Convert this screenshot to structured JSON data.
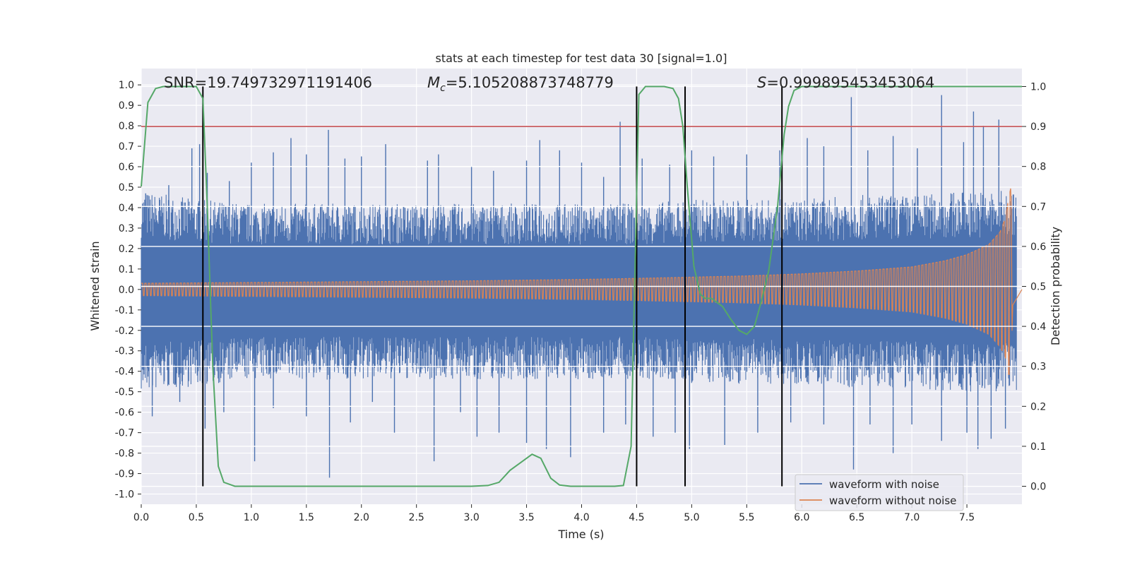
{
  "chart_data": {
    "type": "line",
    "title": "stats at each timestep for test data 30 [signal=1.0]",
    "xlabel": "Time (s)",
    "ylabel_left": "Whitened strain",
    "ylabel_right": "Detection probability",
    "xlim": [
      0.0,
      8.0
    ],
    "ylim_left": [
      -1.05,
      1.08
    ],
    "ylim_right": [
      -0.045,
      1.045
    ],
    "x_ticks": [
      "0.0",
      "0.5",
      "1.0",
      "1.5",
      "2.0",
      "2.5",
      "3.0",
      "3.5",
      "4.0",
      "4.5",
      "5.0",
      "5.5",
      "6.0",
      "6.5",
      "7.0",
      "7.5"
    ],
    "y_ticks_left": [
      "-1.0",
      "-0.9",
      "-0.8",
      "-0.7",
      "-0.6",
      "-0.5",
      "-0.4",
      "-0.3",
      "-0.2",
      "-0.1",
      "0.0",
      "0.1",
      "0.2",
      "0.3",
      "0.4",
      "0.5",
      "0.6",
      "0.7",
      "0.8",
      "0.9",
      "1.0"
    ],
    "y_ticks_right": [
      "0.0",
      "0.1",
      "0.2",
      "0.3",
      "0.4",
      "0.5",
      "0.6",
      "0.7",
      "0.8",
      "0.9",
      "1.0"
    ],
    "grid": true,
    "legend_position": "bottom-right",
    "annotations": {
      "snr": "SNR=19.749732971191406",
      "mc_symbol": "M",
      "mc_subscript": "c",
      "mc_value": "=5.105208873748779",
      "s_symbol": "S",
      "s_value": "=0.999895453453064"
    },
    "series": [
      {
        "name": "waveform with noise",
        "color": "#4c72b0",
        "envelope": [
          [
            0.0,
            0.46,
            -0.48
          ],
          [
            0.5,
            0.42,
            -0.45
          ],
          [
            1.0,
            0.4,
            -0.42
          ],
          [
            1.5,
            0.4,
            -0.42
          ],
          [
            2.0,
            0.4,
            -0.42
          ],
          [
            2.5,
            0.4,
            -0.42
          ],
          [
            3.0,
            0.4,
            -0.42
          ],
          [
            3.5,
            0.4,
            -0.42
          ],
          [
            4.0,
            0.4,
            -0.42
          ],
          [
            4.5,
            0.4,
            -0.42
          ],
          [
            5.0,
            0.42,
            -0.44
          ],
          [
            5.5,
            0.42,
            -0.44
          ],
          [
            6.0,
            0.42,
            -0.44
          ],
          [
            6.5,
            0.44,
            -0.46
          ],
          [
            7.0,
            0.44,
            -0.46
          ],
          [
            7.5,
            0.46,
            -0.48
          ],
          [
            7.95,
            0.46,
            -0.48
          ]
        ],
        "spikes": [
          [
            0.04,
            0.47
          ],
          [
            0.25,
            0.51
          ],
          [
            0.46,
            0.69
          ],
          [
            0.53,
            0.71
          ],
          [
            0.6,
            0.57
          ],
          [
            0.8,
            0.53
          ],
          [
            1.0,
            0.62
          ],
          [
            1.2,
            0.67
          ],
          [
            1.36,
            0.74
          ],
          [
            1.5,
            0.66
          ],
          [
            1.7,
            0.78
          ],
          [
            1.85,
            0.64
          ],
          [
            2.0,
            0.65
          ],
          [
            2.22,
            0.71
          ],
          [
            2.6,
            0.63
          ],
          [
            2.7,
            0.66
          ],
          [
            3.0,
            0.6
          ],
          [
            3.2,
            0.58
          ],
          [
            3.5,
            0.63
          ],
          [
            3.62,
            0.73
          ],
          [
            3.8,
            0.68
          ],
          [
            4.0,
            0.62
          ],
          [
            4.2,
            0.55
          ],
          [
            4.35,
            0.82
          ],
          [
            4.55,
            0.64
          ],
          [
            4.8,
            0.61
          ],
          [
            5.0,
            0.68
          ],
          [
            5.2,
            0.65
          ],
          [
            5.5,
            0.66
          ],
          [
            5.8,
            0.68
          ],
          [
            6.05,
            0.74
          ],
          [
            6.2,
            0.7
          ],
          [
            6.45,
            0.94
          ],
          [
            6.6,
            0.68
          ],
          [
            6.83,
            0.75
          ],
          [
            7.05,
            0.69
          ],
          [
            7.27,
            0.95
          ],
          [
            7.47,
            0.72
          ],
          [
            7.56,
            0.87
          ],
          [
            7.65,
            0.8
          ],
          [
            7.79,
            0.83
          ],
          [
            0.1,
            -0.62
          ],
          [
            0.35,
            -0.55
          ],
          [
            0.58,
            -0.68
          ],
          [
            0.75,
            -0.6
          ],
          [
            1.03,
            -0.84
          ],
          [
            1.2,
            -0.58
          ],
          [
            1.5,
            -0.62
          ],
          [
            1.71,
            -0.92
          ],
          [
            1.9,
            -0.65
          ],
          [
            2.1,
            -0.55
          ],
          [
            2.3,
            -0.7
          ],
          [
            2.66,
            -0.84
          ],
          [
            2.9,
            -0.6
          ],
          [
            3.05,
            -0.72
          ],
          [
            3.25,
            -0.7
          ],
          [
            3.5,
            -0.75
          ],
          [
            3.68,
            -0.78
          ],
          [
            3.9,
            -0.82
          ],
          [
            4.2,
            -0.7
          ],
          [
            4.4,
            -0.66
          ],
          [
            4.65,
            -0.72
          ],
          [
            4.85,
            -0.7
          ],
          [
            4.98,
            -0.78
          ],
          [
            5.3,
            -0.76
          ],
          [
            5.6,
            -0.7
          ],
          [
            5.9,
            -0.65
          ],
          [
            6.2,
            -0.66
          ],
          [
            6.47,
            -0.88
          ],
          [
            6.62,
            -0.66
          ],
          [
            6.83,
            -0.8
          ],
          [
            7.0,
            -0.66
          ],
          [
            7.27,
            -0.74
          ],
          [
            7.5,
            -0.7
          ],
          [
            7.6,
            -0.78
          ],
          [
            7.72,
            -0.73
          ],
          [
            7.85,
            -0.68
          ]
        ]
      },
      {
        "name": "waveform without noise",
        "color": "#dd8452",
        "envelope": [
          [
            0.0,
            0.03,
            -0.03
          ],
          [
            1.0,
            0.034,
            -0.034
          ],
          [
            2.0,
            0.038,
            -0.038
          ],
          [
            3.0,
            0.042,
            -0.042
          ],
          [
            4.0,
            0.049,
            -0.049
          ],
          [
            4.5,
            0.054,
            -0.054
          ],
          [
            5.0,
            0.06,
            -0.06
          ],
          [
            5.5,
            0.066,
            -0.066
          ],
          [
            6.0,
            0.076,
            -0.076
          ],
          [
            6.5,
            0.09,
            -0.09
          ],
          [
            7.0,
            0.11,
            -0.11
          ],
          [
            7.3,
            0.14,
            -0.14
          ],
          [
            7.5,
            0.17,
            -0.17
          ],
          [
            7.7,
            0.22,
            -0.22
          ],
          [
            7.8,
            0.28,
            -0.28
          ],
          [
            7.85,
            0.35,
            -0.33
          ],
          [
            7.88,
            0.45,
            -0.42
          ],
          [
            7.9,
            0.5,
            -0.4
          ],
          [
            7.92,
            0.01,
            -0.01
          ],
          [
            8.0,
            0.0,
            0.0
          ]
        ]
      },
      {
        "name": "",
        "color": "#55a868",
        "x": [
          0.0,
          0.06,
          0.13,
          0.2,
          0.3,
          0.4,
          0.5,
          0.56,
          0.6,
          0.65,
          0.7,
          0.75,
          0.85,
          1.0,
          1.5,
          2.0,
          2.5,
          3.0,
          3.15,
          3.25,
          3.35,
          3.45,
          3.55,
          3.63,
          3.72,
          3.8,
          3.9,
          4.1,
          4.3,
          4.38,
          4.45,
          4.52,
          4.58,
          4.65,
          4.75,
          4.83,
          4.88,
          4.92,
          4.96,
          5.02,
          5.08,
          5.12,
          5.18,
          5.28,
          5.35,
          5.43,
          5.5,
          5.57,
          5.63,
          5.7,
          5.78,
          5.84,
          5.88,
          5.93,
          6.0,
          6.5,
          7.0,
          7.5,
          8.0
        ],
        "y": [
          0.75,
          0.96,
          0.995,
          1.0,
          1.0,
          1.0,
          1.0,
          0.97,
          0.7,
          0.3,
          0.05,
          0.01,
          0.0,
          0.0,
          0.0,
          0.0,
          0.0,
          0.0,
          0.002,
          0.01,
          0.04,
          0.06,
          0.08,
          0.07,
          0.02,
          0.003,
          0.0,
          0.0,
          0.0,
          0.002,
          0.1,
          0.98,
          1.0,
          1.0,
          1.0,
          0.995,
          0.97,
          0.9,
          0.75,
          0.55,
          0.48,
          0.47,
          0.47,
          0.45,
          0.42,
          0.39,
          0.38,
          0.4,
          0.46,
          0.54,
          0.7,
          0.88,
          0.95,
          0.99,
          1.0,
          1.0,
          1.0,
          1.0,
          1.0
        ]
      }
    ],
    "threshold": {
      "y_right": 0.9,
      "color": "#c44e52"
    },
    "vertical_markers": [
      0.56,
      4.5,
      4.94,
      5.82
    ]
  },
  "legend": {
    "items": [
      {
        "label": "waveform with noise",
        "color": "#4c72b0"
      },
      {
        "label": "waveform without noise",
        "color": "#dd8452"
      }
    ]
  }
}
